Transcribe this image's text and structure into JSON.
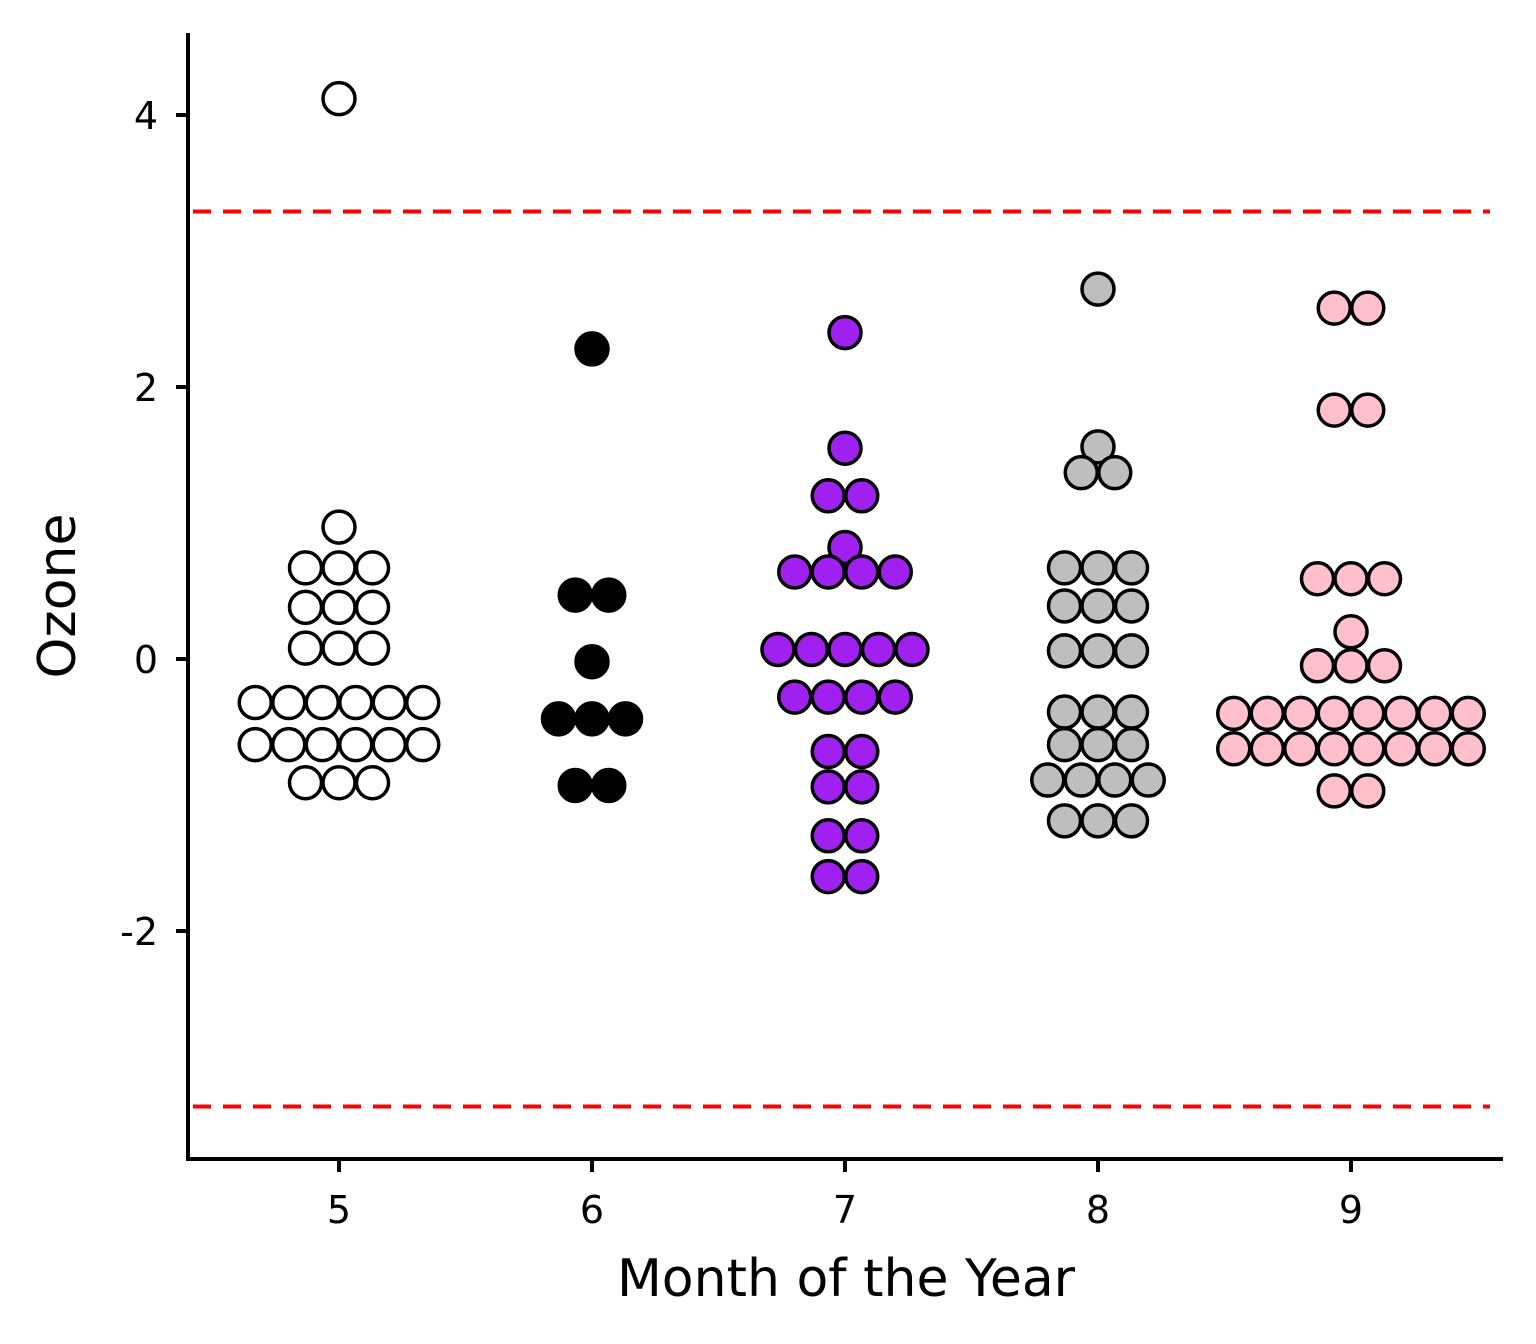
{
  "chart_data": {
    "type": "scatter",
    "subtype": "dotplot",
    "title": "",
    "xlabel": "Month of the Year",
    "ylabel": "Ozone",
    "x_categories": [
      "5",
      "6",
      "7",
      "8",
      "9"
    ],
    "y_ticks": [
      "4",
      "2",
      "0",
      "-2"
    ],
    "y_tick_values": [
      4,
      2,
      0,
      -2
    ],
    "xlim": [
      4.4,
      9.6
    ],
    "ylim": [
      -3.65,
      4.6
    ],
    "grid": false,
    "legend": "none",
    "reference_lines": [
      {
        "y": 3.29,
        "color": "#ff0000",
        "style": "dashed"
      },
      {
        "y": -3.29,
        "color": "#ff0000",
        "style": "dashed"
      }
    ],
    "series": [
      {
        "category": "5",
        "fill": "#ffffff",
        "points": [
          {
            "y": 4.12,
            "n": 1
          },
          {
            "y": 0.97,
            "n": 1
          },
          {
            "y": 0.67,
            "n": 3
          },
          {
            "y": 0.38,
            "n": 3
          },
          {
            "y": 0.08,
            "n": 3
          },
          {
            "y": -0.32,
            "n": 6
          },
          {
            "y": -0.63,
            "n": 6
          },
          {
            "y": -0.91,
            "n": 3
          }
        ]
      },
      {
        "category": "6",
        "fill": "#000000",
        "points": [
          {
            "y": 2.28,
            "n": 1
          },
          {
            "y": 0.47,
            "n": 2
          },
          {
            "y": -0.02,
            "n": 1
          },
          {
            "y": -0.44,
            "n": 3
          },
          {
            "y": -0.93,
            "n": 2
          }
        ]
      },
      {
        "category": "7",
        "fill": "#a020f0",
        "points": [
          {
            "y": 2.4,
            "n": 1
          },
          {
            "y": 1.55,
            "n": 1
          },
          {
            "y": 1.2,
            "n": 2
          },
          {
            "y": 0.82,
            "n": 1
          },
          {
            "y": 0.64,
            "n": 4
          },
          {
            "y": 0.07,
            "n": 5
          },
          {
            "y": -0.28,
            "n": 4
          },
          {
            "y": -0.68,
            "n": 2
          },
          {
            "y": -0.94,
            "n": 2
          },
          {
            "y": -1.3,
            "n": 2
          },
          {
            "y": -1.6,
            "n": 2
          }
        ]
      },
      {
        "category": "8",
        "fill": "#bebebe",
        "points": [
          {
            "y": 2.72,
            "n": 1
          },
          {
            "y": 1.56,
            "n": 1
          },
          {
            "y": 1.37,
            "n": 2
          },
          {
            "y": 0.67,
            "n": 3
          },
          {
            "y": 0.39,
            "n": 3
          },
          {
            "y": 0.06,
            "n": 3
          },
          {
            "y": -0.39,
            "n": 3
          },
          {
            "y": -0.63,
            "n": 3
          },
          {
            "y": -0.89,
            "n": 4
          },
          {
            "y": -1.19,
            "n": 3
          }
        ]
      },
      {
        "category": "9",
        "fill": "#ffc0cb",
        "points": [
          {
            "y": 2.58,
            "n": 2
          },
          {
            "y": 1.83,
            "n": 2
          },
          {
            "y": 0.59,
            "n": 3
          },
          {
            "y": 0.2,
            "n": 1
          },
          {
            "y": -0.05,
            "n": 3
          },
          {
            "y": -0.4,
            "n": 8
          },
          {
            "y": -0.66,
            "n": 8
          },
          {
            "y": -0.97,
            "n": 2
          }
        ]
      }
    ]
  }
}
